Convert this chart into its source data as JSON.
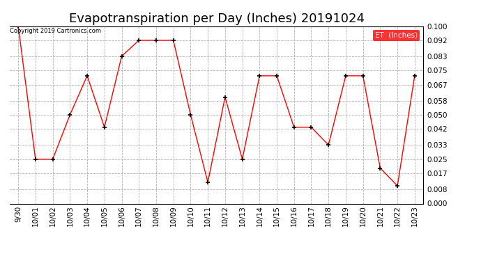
{
  "title": "Evapotranspiration per Day (Inches) 20191024",
  "copyright_text": "Copyright 2019 Cartronics.com",
  "legend_label": "ET  (Inches)",
  "legend_bg": "#ff0000",
  "legend_fg": "#ffffff",
  "x_labels": [
    "9/30",
    "10/01",
    "10/02",
    "10/03",
    "10/04",
    "10/05",
    "10/06",
    "10/07",
    "10/08",
    "10/09",
    "10/10",
    "10/11",
    "10/12",
    "10/13",
    "10/14",
    "10/15",
    "10/16",
    "10/17",
    "10/18",
    "10/19",
    "10/20",
    "10/21",
    "10/22",
    "10/23"
  ],
  "y_values": [
    0.1,
    0.025,
    0.025,
    0.05,
    0.072,
    0.043,
    0.083,
    0.092,
    0.092,
    0.092,
    0.05,
    0.012,
    0.06,
    0.025,
    0.072,
    0.072,
    0.043,
    0.043,
    0.033,
    0.072,
    0.072,
    0.02,
    0.01,
    0.072
  ],
  "line_color": "#ff0000",
  "marker_color": "#000000",
  "background_color": "#ffffff",
  "grid_color": "#b0b0b0",
  "ylim": [
    0.0,
    0.1
  ],
  "yticks": [
    0.0,
    0.008,
    0.017,
    0.025,
    0.033,
    0.042,
    0.05,
    0.058,
    0.067,
    0.075,
    0.083,
    0.092,
    0.1
  ],
  "title_fontsize": 13,
  "tick_fontsize": 7.5,
  "fig_width": 6.9,
  "fig_height": 3.75,
  "dpi": 100
}
